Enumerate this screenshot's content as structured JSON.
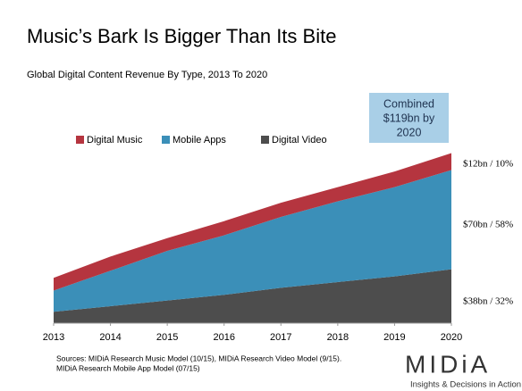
{
  "chart_data": {
    "type": "stacked-area",
    "title": "Music’s Bark Is Bigger Than Its Bite",
    "subtitle": "Global Digital Content Revenue By Type, 2013 To 2020",
    "x": [
      2013,
      2014,
      2015,
      2016,
      2017,
      2018,
      2019,
      2020
    ],
    "xlim": [
      2013,
      2020
    ],
    "xticks": [
      2013,
      2014,
      2015,
      2016,
      2017,
      2018,
      2019,
      2020
    ],
    "ylim": [
      0,
      120
    ],
    "series": [
      {
        "name": "Digital Music",
        "color": "#b5353f",
        "values": [
          9,
          10,
          9,
          10,
          10,
          10,
          11,
          12
        ]
      },
      {
        "name": "Mobile Apps",
        "color": "#3b8fb8",
        "values": [
          15,
          25,
          35,
          42,
          50,
          57,
          63,
          70
        ]
      },
      {
        "name": "Digital Video",
        "color": "#4d4d4d",
        "values": [
          8,
          12,
          16,
          20,
          25,
          29,
          33,
          38
        ]
      }
    ],
    "annotations": [
      "$12bn / 10%",
      "$70bn / 58%",
      "$38bn / 32%"
    ],
    "callout": [
      "Combined",
      "$119bn by",
      "2020"
    ],
    "source": [
      "Sources: MIDiA Research Music Model (10/15), MIDiA Research Video Model (9/15).",
      "MIDiA Research Mobile App Model (07/15)"
    ],
    "logo": {
      "name": "MIDiA",
      "tagline": "Insights & Decisions in Action"
    }
  }
}
